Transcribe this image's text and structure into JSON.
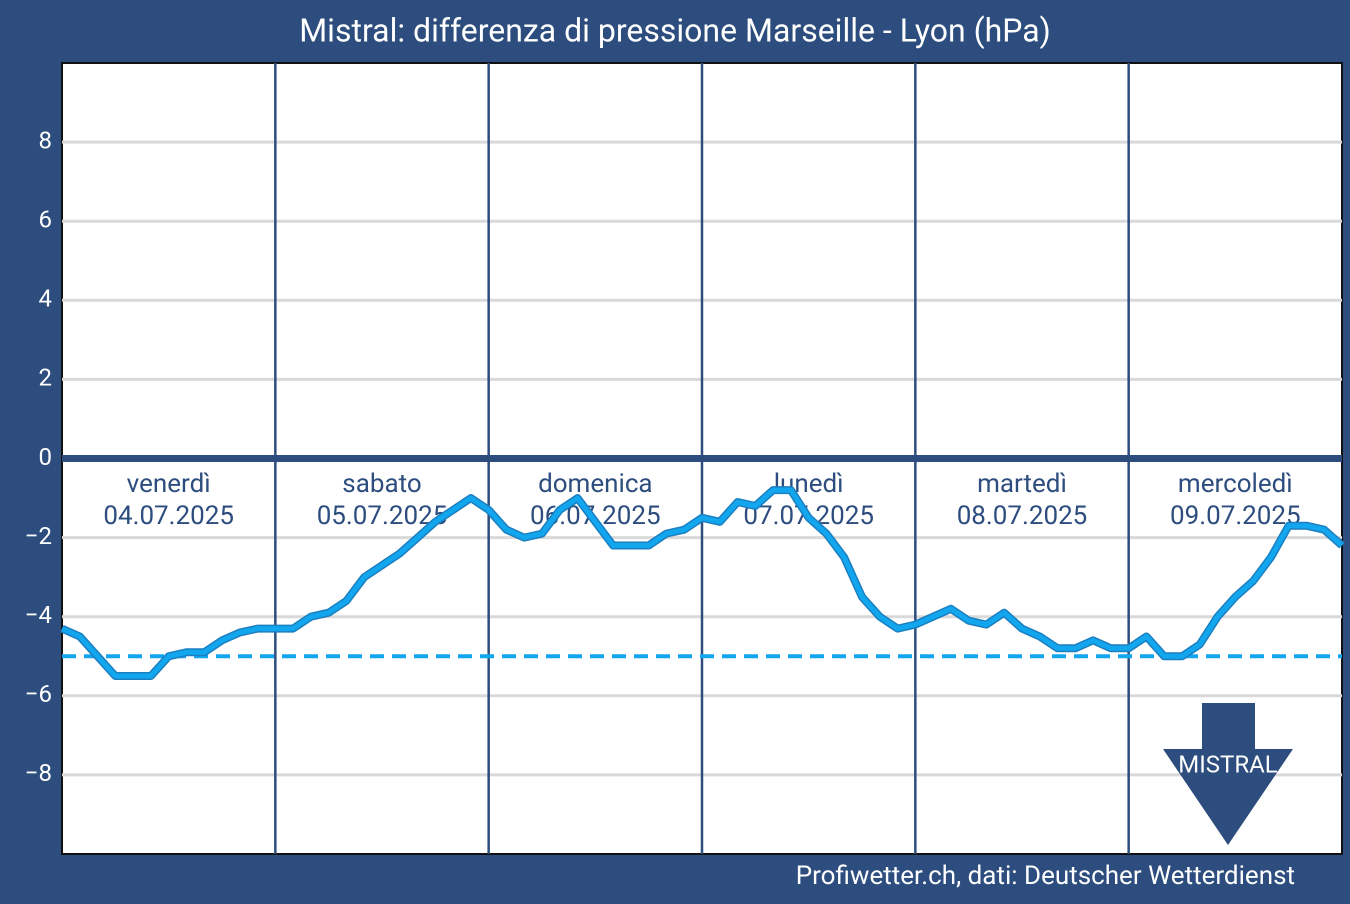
{
  "chart_data": {
    "type": "line",
    "title": "Mistral: differenza di pressione Marseille - Lyon (hPa)",
    "source": "Profiwetter.ch, dati: Deutscher Wetterdienst",
    "annotation": "MISTRAL",
    "days": [
      {
        "name": "venerdì",
        "date": "04.07.2025"
      },
      {
        "name": "sabato",
        "date": "05.07.2025"
      },
      {
        "name": "domenica",
        "date": "06.07.2025"
      },
      {
        "name": "lunedì",
        "date": "07.07.2025"
      },
      {
        "name": "martedì",
        "date": "08.07.2025"
      },
      {
        "name": "mercoledì",
        "date": "09.07.2025"
      }
    ],
    "values": [
      -4.3,
      -4.5,
      -5.0,
      -5.5,
      -5.5,
      -5.5,
      -5.0,
      -4.9,
      -4.9,
      -4.6,
      -4.4,
      -4.3,
      -4.3,
      -4.3,
      -4.0,
      -3.9,
      -3.6,
      -3.0,
      -2.7,
      -2.4,
      -2.0,
      -1.6,
      -1.3,
      -1.0,
      -1.3,
      -1.8,
      -2.0,
      -1.9,
      -1.3,
      -1.0,
      -1.6,
      -2.2,
      -2.2,
      -2.2,
      -1.9,
      -1.8,
      -1.5,
      -1.6,
      -1.1,
      -1.2,
      -0.8,
      -0.8,
      -1.5,
      -1.9,
      -2.5,
      -3.5,
      -4.0,
      -4.3,
      -4.2,
      -4.0,
      -3.8,
      -4.1,
      -4.2,
      -3.9,
      -4.3,
      -4.5,
      -4.8,
      -4.8,
      -4.6,
      -4.8,
      -4.8,
      -4.5,
      -5.0,
      -5.0,
      -4.7,
      -4.0,
      -3.5,
      -3.1,
      -2.5,
      -1.7,
      -1.7,
      -1.8,
      -2.2
    ],
    "color": "#12a6ee",
    "threshold": -5,
    "ylim": [
      -10,
      10
    ],
    "yticks": [
      {
        "value": -8,
        "label": "−8"
      },
      {
        "value": -6,
        "label": "−6"
      },
      {
        "value": -4,
        "label": "−4"
      },
      {
        "value": -2,
        "label": "−2"
      },
      0,
      2,
      4,
      6,
      8
    ],
    "grid": true
  }
}
